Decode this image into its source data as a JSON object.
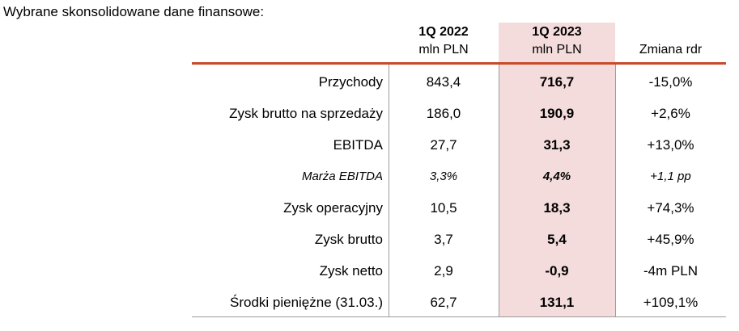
{
  "heading": "Wybrane skonsolidowane dane finansowe:",
  "columns": {
    "q2022": {
      "period": "1Q 2022",
      "unit": "mln PLN"
    },
    "q2023": {
      "period": "1Q 2023",
      "unit": "mln PLN"
    },
    "change": {
      "label": "Zmiana rdr"
    }
  },
  "rows": [
    {
      "label": "Przychody",
      "q2022": "843,4",
      "q2023": "716,7",
      "change": "-15,0%"
    },
    {
      "label": "Zysk brutto na sprzedaży",
      "q2022": "186,0",
      "q2023": "190,9",
      "change": "+2,6%"
    },
    {
      "label": "EBITDA",
      "q2022": "27,7",
      "q2023": "31,3",
      "change": "+13,0%"
    },
    {
      "label": "Marża EBITDA",
      "q2022": "3,3%",
      "q2023": "4,4%",
      "change": "+1,1 pp"
    },
    {
      "label": "Zysk operacyjny",
      "q2022": "10,5",
      "q2023": "18,3",
      "change": "+74,3%"
    },
    {
      "label": "Zysk brutto",
      "q2022": "3,7",
      "q2023": "5,4",
      "change": "+45,9%"
    },
    {
      "label": "Zysk netto",
      "q2022": "2,9",
      "q2023": "-0,9",
      "change": "-4m PLN"
    },
    {
      "label": "Środki pieniężne (31.03.)",
      "q2022": "62,7",
      "q2023": "131,1",
      "change": "+109,1%"
    }
  ],
  "colors": {
    "highlight": "#f4dcdc",
    "rule": "#c84a2a",
    "separator": "#9b9b9b"
  }
}
